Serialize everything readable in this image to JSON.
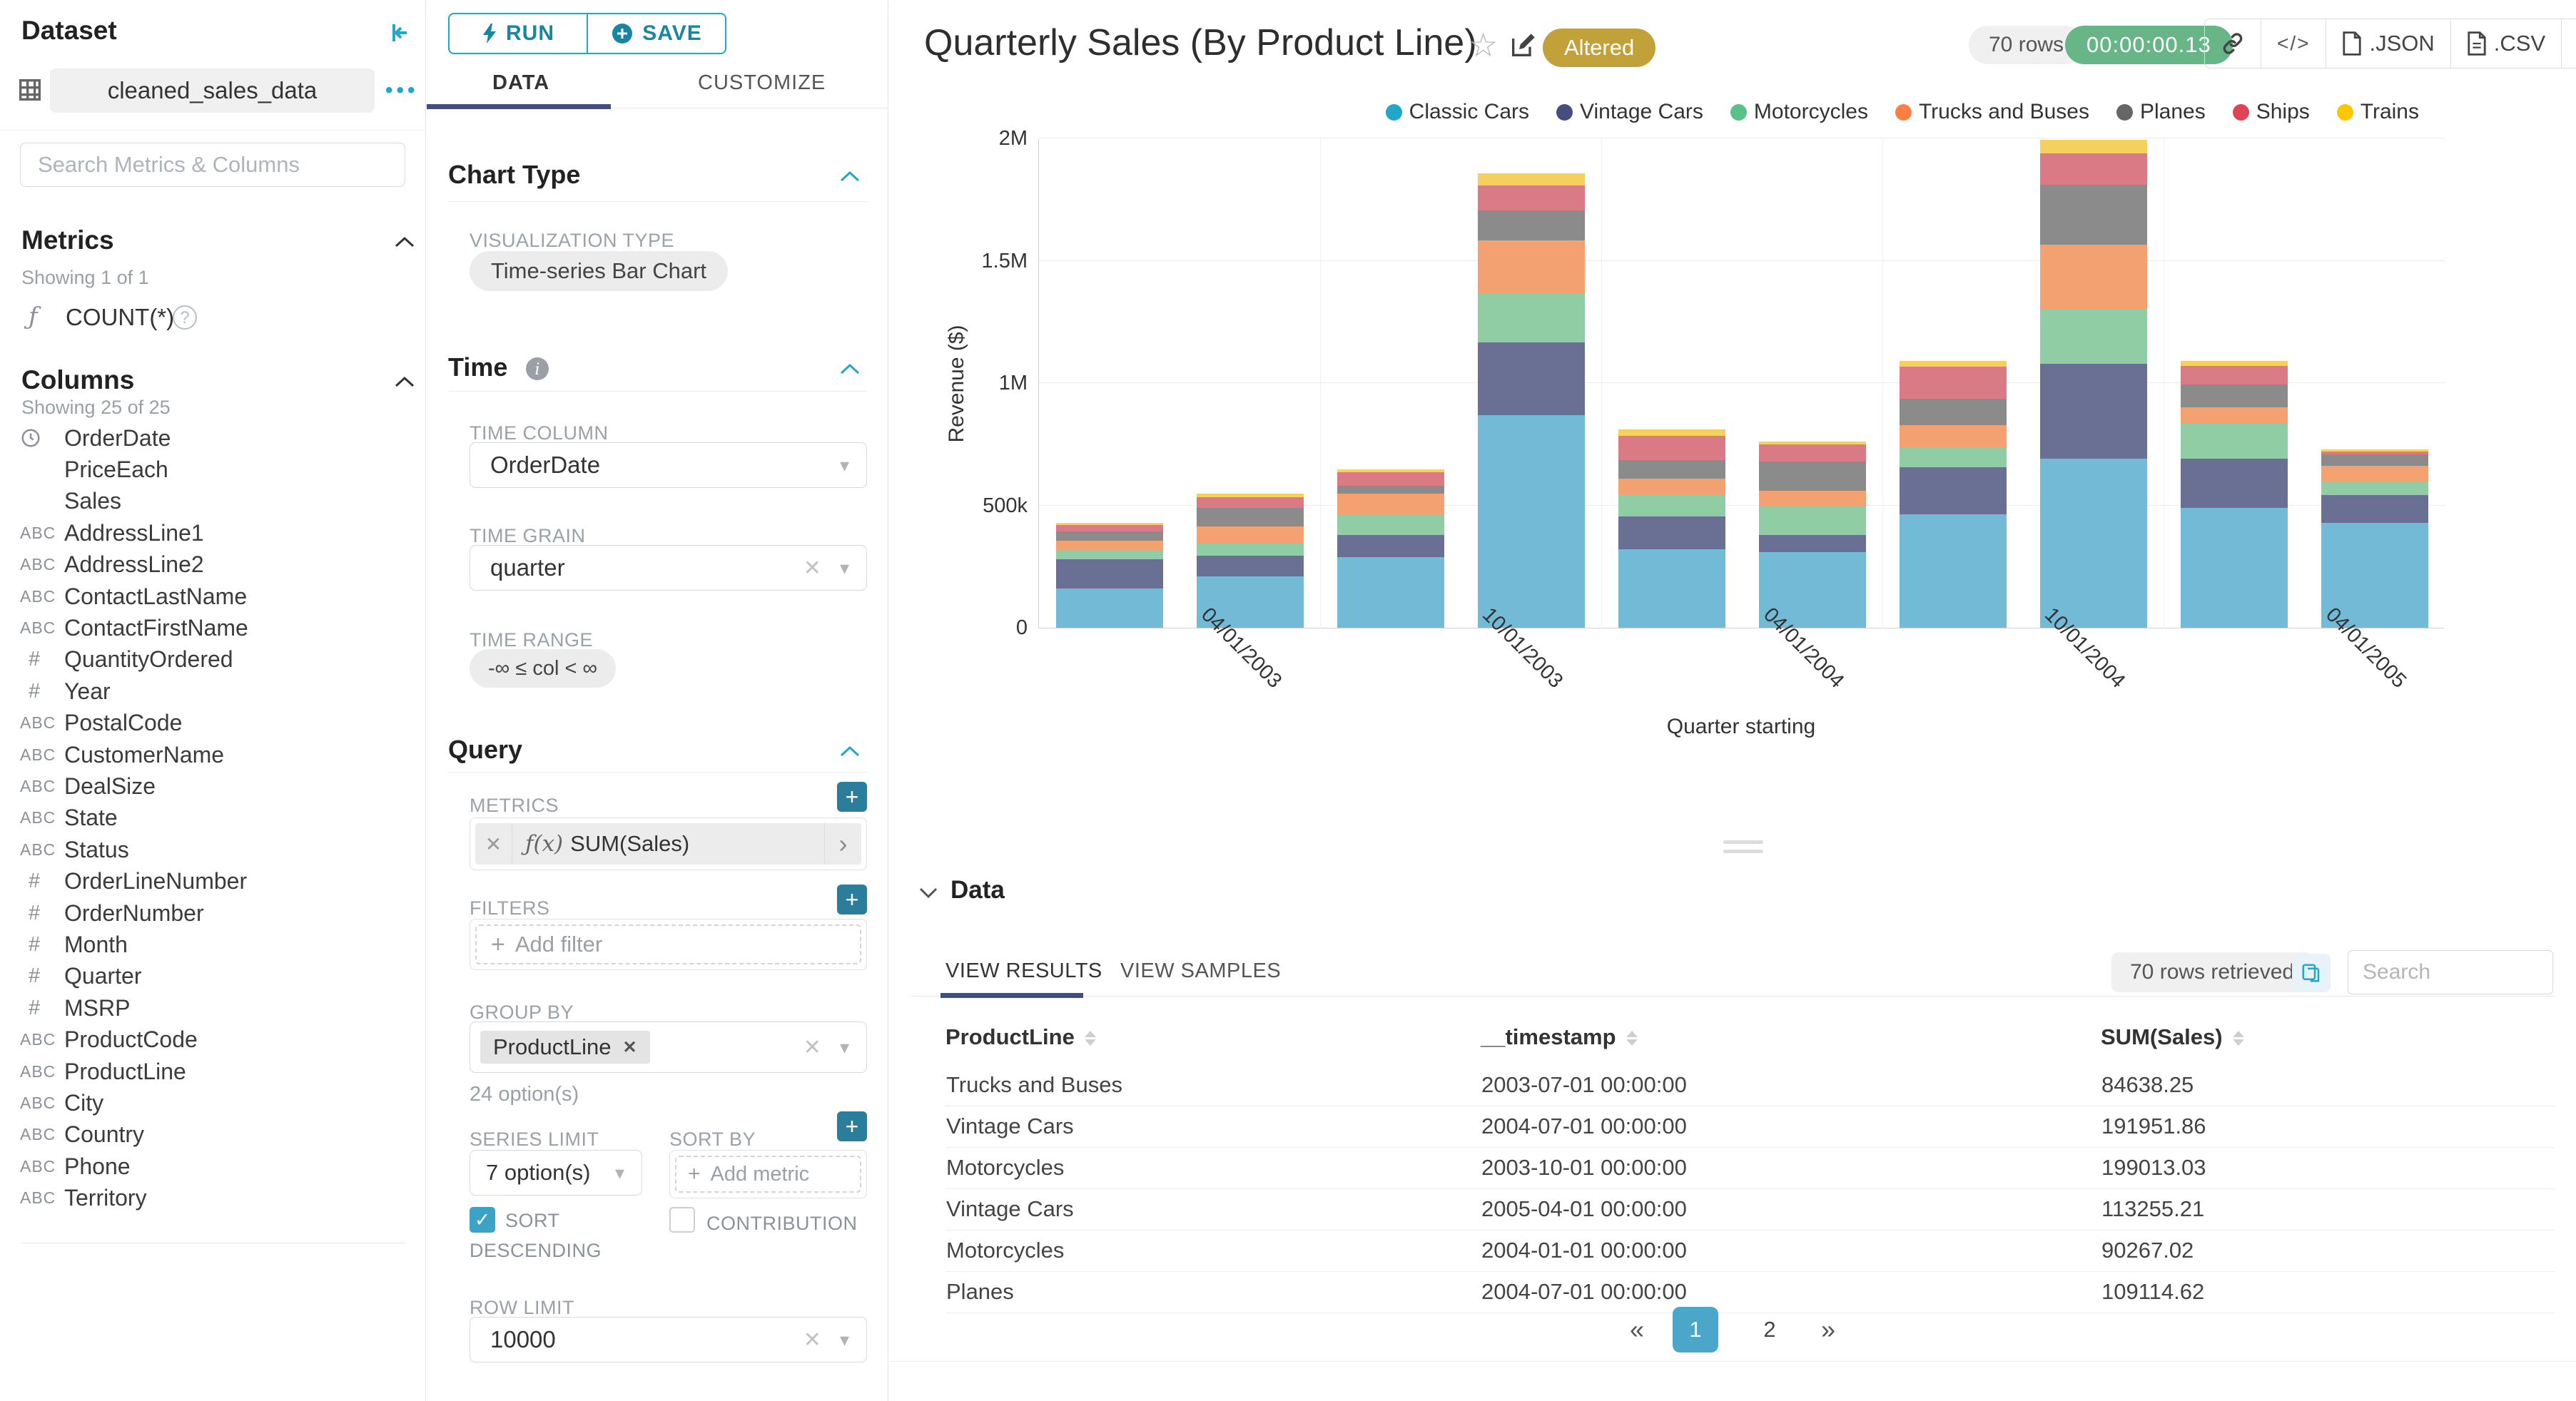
{
  "theme": {
    "accent": "#20A7C9",
    "accent_dark": "#1985A0",
    "tab_ink": "#444E7C",
    "altered_badge_bg": "#C2A03A",
    "timer_badge_bg": "#68B588",
    "pagination_active_bg": "#4AA7C9"
  },
  "dataset_panel": {
    "title": "Dataset",
    "dataset_name": "cleaned_sales_data",
    "more_label": "•••",
    "search_placeholder": "Search Metrics & Columns",
    "metrics": {
      "title": "Metrics",
      "showing": "Showing 1 of 1",
      "items": [
        {
          "icon": "function",
          "label": "COUNT(*)"
        }
      ]
    },
    "columns": {
      "title": "Columns",
      "showing": "Showing 25 of 25",
      "type_glyphs": {
        "str": "ABC",
        "num": "#"
      },
      "items": [
        {
          "type": "time",
          "label": "OrderDate"
        },
        {
          "type": "none",
          "label": "PriceEach"
        },
        {
          "type": "none",
          "label": "Sales"
        },
        {
          "type": "str",
          "label": "AddressLine1"
        },
        {
          "type": "str",
          "label": "AddressLine2"
        },
        {
          "type": "str",
          "label": "ContactLastName"
        },
        {
          "type": "str",
          "label": "ContactFirstName"
        },
        {
          "type": "num",
          "label": "QuantityOrdered"
        },
        {
          "type": "num",
          "label": "Year"
        },
        {
          "type": "str",
          "label": "PostalCode"
        },
        {
          "type": "str",
          "label": "CustomerName"
        },
        {
          "type": "str",
          "label": "DealSize"
        },
        {
          "type": "str",
          "label": "State"
        },
        {
          "type": "str",
          "label": "Status"
        },
        {
          "type": "num",
          "label": "OrderLineNumber"
        },
        {
          "type": "num",
          "label": "OrderNumber"
        },
        {
          "type": "num",
          "label": "Month"
        },
        {
          "type": "num",
          "label": "Quarter"
        },
        {
          "type": "num",
          "label": "MSRP"
        },
        {
          "type": "str",
          "label": "ProductCode"
        },
        {
          "type": "str",
          "label": "ProductLine"
        },
        {
          "type": "str",
          "label": "City"
        },
        {
          "type": "str",
          "label": "Country"
        },
        {
          "type": "str",
          "label": "Phone"
        },
        {
          "type": "str",
          "label": "Territory"
        }
      ]
    }
  },
  "control_panel": {
    "run_label": "RUN",
    "save_label": "SAVE",
    "tabs": {
      "data": "DATA",
      "customize": "CUSTOMIZE"
    },
    "chart_type": {
      "title": "Chart Type",
      "viz_label": "VISUALIZATION TYPE",
      "viz_value": "Time-series Bar Chart"
    },
    "time": {
      "title": "Time",
      "column_label": "TIME COLUMN",
      "column_value": "OrderDate",
      "grain_label": "TIME GRAIN",
      "grain_value": "quarter",
      "range_label": "TIME RANGE",
      "range_value": "-∞ ≤ col < ∞"
    },
    "query": {
      "title": "Query",
      "metrics_label": "METRICS",
      "metric_prefix": "ƒ(x)",
      "metric_chip": "SUM(Sales)",
      "filters_label": "FILTERS",
      "add_filter": "Add filter",
      "group_by_label": "GROUP BY",
      "group_by_chip": "ProductLine",
      "options_hint": "24 option(s)",
      "series_limit_label": "SERIES LIMIT",
      "series_limit_value": "7 option(s)",
      "sort_by_label": "SORT BY",
      "add_metric": "Add metric",
      "sort_descending_label": "SORT DESCENDING",
      "sort_descending_checked": true,
      "contribution_label": "CONTRIBUTION",
      "contribution_checked": false,
      "row_limit_label": "ROW LIMIT",
      "row_limit_value": "10000"
    }
  },
  "chart_header": {
    "title": "Quarterly Sales (By Product Line)",
    "altered_badge": "Altered",
    "rows_badge": "70 rows",
    "timer_badge": "00:00:00.13",
    "buttons": {
      "json_label": ".JSON",
      "csv_label": ".CSV"
    }
  },
  "chart_data": {
    "type": "bar",
    "stacked": true,
    "title": "Quarterly Sales (By Product Line)",
    "xlabel": "Quarter starting",
    "ylabel": "Revenue ($)",
    "ylim": [
      0,
      2000000
    ],
    "ytick_labels": [
      "0",
      "500k",
      "1M",
      "1.5M",
      "2M"
    ],
    "grid": true,
    "legend_position": "top-right",
    "categories": [
      "01/01/2003",
      "04/01/2003",
      "07/01/2003",
      "10/01/2003",
      "01/01/2004",
      "04/01/2004",
      "07/01/2004",
      "10/01/2004",
      "01/01/2005",
      "04/01/2005"
    ],
    "x_tick_labels": [
      {
        "index": 1,
        "label": "04/01/2003"
      },
      {
        "index": 3,
        "label": "10/01/2003"
      },
      {
        "index": 5,
        "label": "04/01/2004"
      },
      {
        "index": 7,
        "label": "10/01/2004"
      },
      {
        "index": 9,
        "label": "04/01/2005"
      }
    ],
    "legend_colors": [
      "#20A7C9",
      "#454E7C",
      "#5AC189",
      "#FF7F44",
      "#666666",
      "#E04355",
      "#FCC700"
    ],
    "bar_colors": [
      "#73BAD6",
      "#697094",
      "#90CDA4",
      "#F4A172",
      "#8B8B8B",
      "#DA7A85",
      "#F6D05E"
    ],
    "series": [
      {
        "name": "Classic Cars",
        "values": [
          160000,
          210000,
          290000,
          870000,
          320000,
          310000,
          465000,
          690000,
          490000,
          430000
        ]
      },
      {
        "name": "Vintage Cars",
        "values": [
          120000,
          85000,
          90000,
          297000,
          135000,
          70000,
          191951.86,
          390000,
          200000,
          113255.21
        ]
      },
      {
        "name": "Motorcycles",
        "values": [
          35000,
          50000,
          85000,
          199013.03,
          90267.02,
          120000,
          80000,
          220000,
          145000,
          55000
        ]
      },
      {
        "name": "Trucks and Buses",
        "values": [
          40000,
          70000,
          84638.25,
          217000,
          65000,
          60000,
          90000,
          265000,
          65000,
          65000
        ]
      },
      {
        "name": "Planes",
        "values": [
          40000,
          75000,
          30000,
          123000,
          75000,
          120000,
          109114.62,
          245000,
          95000,
          45000
        ]
      },
      {
        "name": "Ships",
        "values": [
          25000,
          45000,
          55000,
          101000,
          100000,
          70000,
          130000,
          130000,
          75000,
          12000
        ]
      },
      {
        "name": "Trains",
        "values": [
          10000,
          12000,
          12000,
          50000,
          25000,
          10000,
          25000,
          55000,
          20000,
          8000
        ]
      }
    ]
  },
  "data_panel": {
    "title": "Data",
    "tabs": [
      "VIEW RESULTS",
      "VIEW SAMPLES"
    ],
    "rows_retrieved": "70 rows retrieved",
    "search_placeholder": "Search",
    "table": {
      "columns": [
        "ProductLine",
        "__timestamp",
        "SUM(Sales)"
      ],
      "rows": [
        [
          "Trucks and Buses",
          "2003-07-01 00:00:00",
          "84638.25"
        ],
        [
          "Vintage Cars",
          "2004-07-01 00:00:00",
          "191951.86"
        ],
        [
          "Motorcycles",
          "2003-10-01 00:00:00",
          "199013.03"
        ],
        [
          "Vintage Cars",
          "2005-04-01 00:00:00",
          "113255.21"
        ],
        [
          "Motorcycles",
          "2004-01-01 00:00:00",
          "90267.02"
        ],
        [
          "Planes",
          "2004-07-01 00:00:00",
          "109114.62"
        ]
      ]
    },
    "pagination": {
      "prev": "«",
      "pages": [
        "1",
        "2"
      ],
      "active": "1",
      "next": "»"
    }
  }
}
